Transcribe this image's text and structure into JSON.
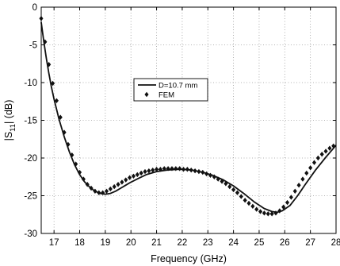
{
  "chart_data": {
    "type": "line",
    "title": "",
    "xlabel": "Frequency (GHz)",
    "ylabel": "|S11| (dB)",
    "ylabel_main": "|S",
    "ylabel_sub": "11",
    "ylabel_tail": "| (dB)",
    "xlim": [
      16.5,
      28
    ],
    "ylim": [
      -30,
      0
    ],
    "grid": true,
    "legend_position": "center",
    "x_ticks": [
      17,
      18,
      19,
      20,
      21,
      22,
      23,
      24,
      25,
      26,
      27,
      28
    ],
    "y_ticks": [
      0,
      -5,
      -10,
      -15,
      -20,
      -25,
      -30
    ],
    "series": [
      {
        "name": "D=10.7 mm",
        "style": "line",
        "x": [
          16.5,
          16.6,
          16.7,
          16.8,
          16.9,
          17.0,
          17.2,
          17.4,
          17.6,
          17.8,
          18.0,
          18.2,
          18.4,
          18.6,
          18.8,
          19.0,
          19.2,
          19.4,
          19.6,
          19.8,
          20.0,
          20.3,
          20.6,
          21.0,
          21.4,
          21.8,
          22.0,
          22.4,
          22.8,
          23.2,
          23.6,
          24.0,
          24.4,
          24.8,
          25.2,
          25.5,
          25.7,
          25.9,
          26.2,
          26.5,
          26.8,
          27.2,
          27.6,
          28.0
        ],
        "y": [
          -2.0,
          -4.5,
          -6.8,
          -8.8,
          -10.6,
          -12.2,
          -14.9,
          -17.2,
          -19.2,
          -20.9,
          -22.2,
          -23.2,
          -23.9,
          -24.4,
          -24.7,
          -24.8,
          -24.7,
          -24.4,
          -24.0,
          -23.6,
          -23.2,
          -22.7,
          -22.2,
          -21.8,
          -21.6,
          -21.5,
          -21.5,
          -21.6,
          -21.9,
          -22.3,
          -22.9,
          -23.7,
          -24.7,
          -25.8,
          -26.7,
          -27.1,
          -27.2,
          -27.0,
          -26.3,
          -25.0,
          -23.5,
          -21.6,
          -19.9,
          -18.3
        ]
      },
      {
        "name": "FEM",
        "style": "marker",
        "marker": "diamond",
        "x": [
          16.5,
          16.65,
          16.8,
          16.95,
          17.1,
          17.25,
          17.4,
          17.55,
          17.7,
          17.85,
          18.0,
          18.15,
          18.3,
          18.45,
          18.6,
          18.75,
          18.9,
          19.05,
          19.2,
          19.35,
          19.5,
          19.65,
          19.8,
          19.95,
          20.1,
          20.25,
          20.4,
          20.55,
          20.7,
          20.85,
          21.0,
          21.15,
          21.3,
          21.45,
          21.6,
          21.75,
          21.9,
          22.05,
          22.2,
          22.35,
          22.5,
          22.65,
          22.8,
          22.95,
          23.1,
          23.25,
          23.4,
          23.55,
          23.7,
          23.85,
          24.0,
          24.15,
          24.3,
          24.45,
          24.6,
          24.75,
          24.9,
          25.05,
          25.2,
          25.35,
          25.5,
          25.65,
          25.8,
          25.95,
          26.1,
          26.25,
          26.4,
          26.55,
          26.7,
          26.85,
          27.0,
          27.15,
          27.3,
          27.45,
          27.6,
          27.75,
          27.9
        ],
        "y": [
          -1.5,
          -4.6,
          -7.6,
          -10.1,
          -12.4,
          -14.6,
          -16.6,
          -18.2,
          -19.6,
          -20.8,
          -21.9,
          -22.8,
          -23.5,
          -24.0,
          -24.4,
          -24.6,
          -24.6,
          -24.4,
          -24.1,
          -23.8,
          -23.5,
          -23.2,
          -22.9,
          -22.6,
          -22.4,
          -22.2,
          -22.0,
          -21.8,
          -21.7,
          -21.6,
          -21.5,
          -21.5,
          -21.4,
          -21.4,
          -21.4,
          -21.4,
          -21.4,
          -21.5,
          -21.5,
          -21.6,
          -21.7,
          -21.8,
          -21.9,
          -22.1,
          -22.3,
          -22.5,
          -22.8,
          -23.1,
          -23.4,
          -23.8,
          -24.2,
          -24.6,
          -25.1,
          -25.6,
          -26.0,
          -26.4,
          -26.8,
          -27.1,
          -27.3,
          -27.4,
          -27.4,
          -27.3,
          -27.0,
          -26.5,
          -25.9,
          -25.2,
          -24.4,
          -23.6,
          -22.8,
          -22.0,
          -21.3,
          -20.6,
          -20.0,
          -19.5,
          -19.1,
          -18.7,
          -18.4
        ]
      }
    ]
  }
}
